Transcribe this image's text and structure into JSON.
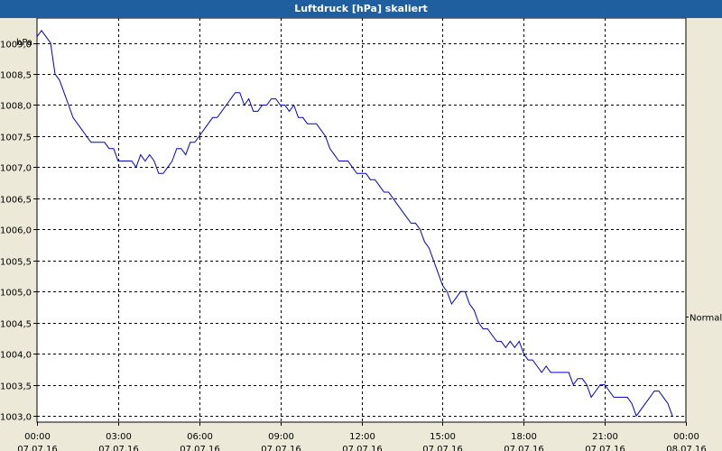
{
  "window": {
    "title": "Luftdruck [hPa] skaliert"
  },
  "chart_data": {
    "type": "line",
    "title": "Luftdruck [hPa] skaliert",
    "ylabel": "hPa",
    "ylim": [
      1002.9,
      1009.4
    ],
    "xlim": [
      "07.07.16 00:00",
      "08.07.16 00:00"
    ],
    "grid": true,
    "y_ticks": [
      "1003,0",
      "1003,5",
      "1004,0",
      "1004,5",
      "1005,0",
      "1005,5",
      "1006,0",
      "1006,5",
      "1007,0",
      "1007,5",
      "1008,0",
      "1008,5",
      "1009,0"
    ],
    "x_ticks": [
      {
        "time": "00:00",
        "date": "07.07.16"
      },
      {
        "time": "03:00",
        "date": "07.07.16"
      },
      {
        "time": "06:00",
        "date": "07.07.16"
      },
      {
        "time": "09:00",
        "date": "07.07.16"
      },
      {
        "time": "12:00",
        "date": "07.07.16"
      },
      {
        "time": "15:00",
        "date": "07.07.16"
      },
      {
        "time": "18:00",
        "date": "07.07.16"
      },
      {
        "time": "21:00",
        "date": "07.07.16"
      },
      {
        "time": "00:00",
        "date": "08.07.16"
      }
    ],
    "reference_label": "Normal",
    "reference_value": 1004.6,
    "series": [
      {
        "color": "#0000cc",
        "points": [
          [
            "07.07.16 00:00",
            1009.1
          ],
          [
            "07.07.16 00:10",
            1009.2
          ],
          [
            "07.07.16 00:20",
            1009.1
          ],
          [
            "07.07.16 00:30",
            1009.0
          ],
          [
            "07.07.16 00:40",
            1008.5
          ],
          [
            "07.07.16 00:50",
            1008.4
          ],
          [
            "07.07.16 01:00",
            1008.2
          ],
          [
            "07.07.16 01:10",
            1008.0
          ],
          [
            "07.07.16 01:20",
            1007.8
          ],
          [
            "07.07.16 01:30",
            1007.7
          ],
          [
            "07.07.16 01:40",
            1007.6
          ],
          [
            "07.07.16 01:50",
            1007.5
          ],
          [
            "07.07.16 02:00",
            1007.4
          ],
          [
            "07.07.16 02:10",
            1007.4
          ],
          [
            "07.07.16 02:20",
            1007.4
          ],
          [
            "07.07.16 02:30",
            1007.4
          ],
          [
            "07.07.16 02:40",
            1007.3
          ],
          [
            "07.07.16 02:50",
            1007.3
          ],
          [
            "07.07.16 03:00",
            1007.1
          ],
          [
            "07.07.16 03:10",
            1007.1
          ],
          [
            "07.07.16 03:20",
            1007.1
          ],
          [
            "07.07.16 03:30",
            1007.1
          ],
          [
            "07.07.16 03:40",
            1007.0
          ],
          [
            "07.07.16 03:50",
            1007.2
          ],
          [
            "07.07.16 04:00",
            1007.1
          ],
          [
            "07.07.16 04:10",
            1007.2
          ],
          [
            "07.07.16 04:20",
            1007.1
          ],
          [
            "07.07.16 04:30",
            1006.9
          ],
          [
            "07.07.16 04:40",
            1006.9
          ],
          [
            "07.07.16 04:50",
            1007.0
          ],
          [
            "07.07.16 05:00",
            1007.1
          ],
          [
            "07.07.16 05:10",
            1007.3
          ],
          [
            "07.07.16 05:20",
            1007.3
          ],
          [
            "07.07.16 05:30",
            1007.2
          ],
          [
            "07.07.16 05:40",
            1007.4
          ],
          [
            "07.07.16 05:50",
            1007.4
          ],
          [
            "07.07.16 06:00",
            1007.5
          ],
          [
            "07.07.16 06:10",
            1007.6
          ],
          [
            "07.07.16 06:20",
            1007.7
          ],
          [
            "07.07.16 06:30",
            1007.8
          ],
          [
            "07.07.16 06:40",
            1007.8
          ],
          [
            "07.07.16 06:50",
            1007.9
          ],
          [
            "07.07.16 07:00",
            1008.0
          ],
          [
            "07.07.16 07:10",
            1008.1
          ],
          [
            "07.07.16 07:20",
            1008.2
          ],
          [
            "07.07.16 07:30",
            1008.2
          ],
          [
            "07.07.16 07:40",
            1008.0
          ],
          [
            "07.07.16 07:50",
            1008.1
          ],
          [
            "07.07.16 08:00",
            1007.9
          ],
          [
            "07.07.16 08:10",
            1007.9
          ],
          [
            "07.07.16 08:20",
            1008.0
          ],
          [
            "07.07.16 08:30",
            1008.0
          ],
          [
            "07.07.16 08:40",
            1008.1
          ],
          [
            "07.07.16 08:50",
            1008.1
          ],
          [
            "07.07.16 09:00",
            1008.0
          ],
          [
            "07.07.16 09:10",
            1008.0
          ],
          [
            "07.07.16 09:20",
            1007.9
          ],
          [
            "07.07.16 09:30",
            1008.0
          ],
          [
            "07.07.16 09:40",
            1007.8
          ],
          [
            "07.07.16 09:50",
            1007.8
          ],
          [
            "07.07.16 10:00",
            1007.7
          ],
          [
            "07.07.16 10:10",
            1007.7
          ],
          [
            "07.07.16 10:20",
            1007.7
          ],
          [
            "07.07.16 10:30",
            1007.6
          ],
          [
            "07.07.16 10:40",
            1007.5
          ],
          [
            "07.07.16 10:50",
            1007.3
          ],
          [
            "07.07.16 11:00",
            1007.2
          ],
          [
            "07.07.16 11:10",
            1007.1
          ],
          [
            "07.07.16 11:20",
            1007.1
          ],
          [
            "07.07.16 11:30",
            1007.1
          ],
          [
            "07.07.16 11:40",
            1007.0
          ],
          [
            "07.07.16 11:50",
            1006.9
          ],
          [
            "07.07.16 12:00",
            1006.9
          ],
          [
            "07.07.16 12:10",
            1006.9
          ],
          [
            "07.07.16 12:20",
            1006.8
          ],
          [
            "07.07.16 12:30",
            1006.8
          ],
          [
            "07.07.16 12:40",
            1006.7
          ],
          [
            "07.07.16 12:50",
            1006.6
          ],
          [
            "07.07.16 13:00",
            1006.6
          ],
          [
            "07.07.16 13:10",
            1006.5
          ],
          [
            "07.07.16 13:20",
            1006.4
          ],
          [
            "07.07.16 13:30",
            1006.3
          ],
          [
            "07.07.16 13:40",
            1006.2
          ],
          [
            "07.07.16 13:50",
            1006.1
          ],
          [
            "07.07.16 14:00",
            1006.1
          ],
          [
            "07.07.16 14:10",
            1006.0
          ],
          [
            "07.07.16 14:20",
            1005.8
          ],
          [
            "07.07.16 14:30",
            1005.7
          ],
          [
            "07.07.16 14:40",
            1005.5
          ],
          [
            "07.07.16 14:50",
            1005.3
          ],
          [
            "07.07.16 15:00",
            1005.1
          ],
          [
            "07.07.16 15:10",
            1005.0
          ],
          [
            "07.07.16 15:20",
            1004.8
          ],
          [
            "07.07.16 15:30",
            1004.9
          ],
          [
            "07.07.16 15:40",
            1005.0
          ],
          [
            "07.07.16 15:50",
            1005.0
          ],
          [
            "07.07.16 16:00",
            1004.8
          ],
          [
            "07.07.16 16:10",
            1004.7
          ],
          [
            "07.07.16 16:20",
            1004.5
          ],
          [
            "07.07.16 16:30",
            1004.4
          ],
          [
            "07.07.16 16:40",
            1004.4
          ],
          [
            "07.07.16 16:50",
            1004.3
          ],
          [
            "07.07.16 17:00",
            1004.2
          ],
          [
            "07.07.16 17:10",
            1004.2
          ],
          [
            "07.07.16 17:20",
            1004.1
          ],
          [
            "07.07.16 17:30",
            1004.2
          ],
          [
            "07.07.16 17:40",
            1004.1
          ],
          [
            "07.07.16 17:50",
            1004.2
          ],
          [
            "07.07.16 18:00",
            1004.0
          ],
          [
            "07.07.16 18:10",
            1003.9
          ],
          [
            "07.07.16 18:20",
            1003.9
          ],
          [
            "07.07.16 18:30",
            1003.8
          ],
          [
            "07.07.16 18:40",
            1003.7
          ],
          [
            "07.07.16 18:50",
            1003.8
          ],
          [
            "07.07.16 19:00",
            1003.7
          ],
          [
            "07.07.16 19:10",
            1003.7
          ],
          [
            "07.07.16 19:20",
            1003.7
          ],
          [
            "07.07.16 19:30",
            1003.7
          ],
          [
            "07.07.16 19:40",
            1003.7
          ],
          [
            "07.07.16 19:50",
            1003.5
          ],
          [
            "07.07.16 20:00",
            1003.6
          ],
          [
            "07.07.16 20:10",
            1003.6
          ],
          [
            "07.07.16 20:20",
            1003.5
          ],
          [
            "07.07.16 20:30",
            1003.3
          ],
          [
            "07.07.16 20:40",
            1003.4
          ],
          [
            "07.07.16 20:50",
            1003.5
          ],
          [
            "07.07.16 21:00",
            1003.5
          ],
          [
            "07.07.16 21:10",
            1003.4
          ],
          [
            "07.07.16 21:20",
            1003.3
          ],
          [
            "07.07.16 21:30",
            1003.3
          ],
          [
            "07.07.16 21:40",
            1003.3
          ],
          [
            "07.07.16 21:50",
            1003.3
          ],
          [
            "07.07.16 22:00",
            1003.2
          ],
          [
            "07.07.16 22:10",
            1003.0
          ],
          [
            "07.07.16 22:20",
            1003.1
          ],
          [
            "07.07.16 22:30",
            1003.2
          ],
          [
            "07.07.16 22:40",
            1003.3
          ],
          [
            "07.07.16 22:50",
            1003.4
          ],
          [
            "07.07.16 23:00",
            1003.4
          ],
          [
            "07.07.16 23:10",
            1003.3
          ],
          [
            "07.07.16 23:20",
            1003.2
          ],
          [
            "07.07.16 23:30",
            1003.0
          ]
        ]
      }
    ]
  }
}
